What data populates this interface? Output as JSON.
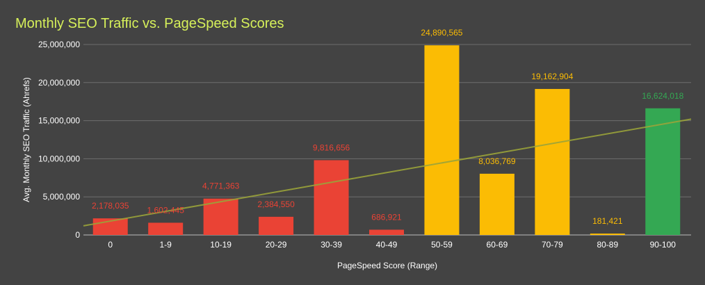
{
  "chart_data": {
    "type": "bar",
    "title": "Monthly SEO Traffic vs. PageSpeed Scores",
    "xlabel": "PageSpeed Score (Range)",
    "ylabel": "Avg. Monthly SEO Traffic (Ahrefs)",
    "ylim": [
      0,
      25000000
    ],
    "yticks": [
      0,
      5000000,
      10000000,
      15000000,
      20000000,
      25000000
    ],
    "ytick_labels": [
      "0",
      "5,000,000",
      "10,000,000",
      "15,000,000",
      "20,000,000",
      "25,000,000"
    ],
    "categories": [
      "0",
      "1-9",
      "10-19",
      "20-29",
      "30-39",
      "40-49",
      "50-59",
      "60-69",
      "70-79",
      "80-89",
      "90-100"
    ],
    "values": [
      2178035,
      1602445,
      4771363,
      2384550,
      9816656,
      686921,
      24890565,
      8036769,
      19162904,
      181421,
      16624018
    ],
    "value_labels": [
      "2,178,035",
      "1,602,445",
      "4,771,363",
      "2,384,550",
      "9,816,656",
      "686,921",
      "24,890,565",
      "8,036,769",
      "19,162,904",
      "181,421",
      "16,624,018"
    ],
    "bar_colors": [
      "#ea4335",
      "#ea4335",
      "#ea4335",
      "#ea4335",
      "#ea4335",
      "#ea4335",
      "#fbbc04",
      "#fbbc04",
      "#fbbc04",
      "#fbbc04",
      "#34a853"
    ],
    "trendline": {
      "type": "linear",
      "start_value": 1200000,
      "end_value": 15200000,
      "color": "#9aa33a"
    },
    "grid": true,
    "legend": "none",
    "colors": {
      "background": "#434343",
      "title": "#d6f05a",
      "gridline": "#6e6e6e",
      "axis_text": "#ffffff"
    }
  }
}
